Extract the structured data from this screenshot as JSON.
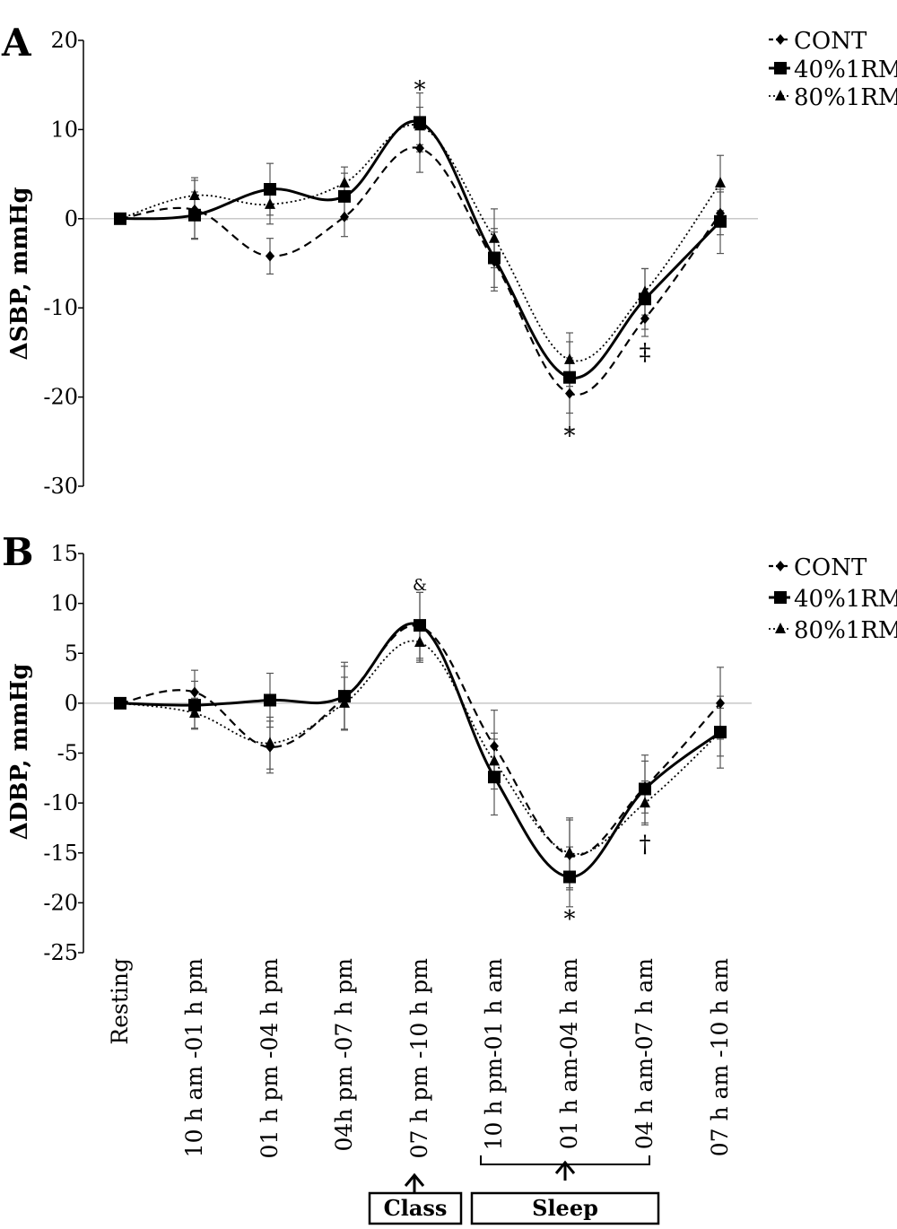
{
  "chart_data": [
    {
      "panel": "A",
      "type": "line",
      "ylabel": "ΔSBP, mmHg",
      "ylim": [
        -30,
        20
      ],
      "yticks": [
        "20",
        "10",
        "0",
        "-10",
        "-20",
        "-30"
      ],
      "legend": [
        "CONT",
        "40%1RM",
        "80%1RM"
      ],
      "series": [
        {
          "name": "CONT",
          "values": [
            0,
            1.0,
            -4.2,
            0.2,
            7.9,
            -4.8,
            -19.6,
            -11.2,
            0.6
          ],
          "errors": [
            0,
            3.3,
            2.0,
            2.2,
            2.7,
            3.3,
            4.0,
            2.0,
            2.4
          ]
        },
        {
          "name": "40%1RM",
          "values": [
            0,
            0.4,
            3.3,
            2.5,
            10.8,
            -4.4,
            -17.8,
            -9.0,
            -0.3
          ],
          "errors": [
            0,
            2.6,
            2.9,
            2.6,
            3.3,
            3.3,
            4.0,
            3.4,
            3.6
          ]
        },
        {
          "name": "80%1RM",
          "values": [
            0,
            2.6,
            1.6,
            4.0,
            10.4,
            -2.2,
            -15.8,
            -8.2,
            4.0
          ],
          "errors": [
            0,
            2.0,
            2.2,
            1.8,
            2.1,
            3.3,
            3.0,
            2.6,
            3.1
          ]
        }
      ],
      "annotations": [
        {
          "text": "*",
          "category_index": 4,
          "value": 14.6
        },
        {
          "text": "*",
          "category_index": 6,
          "value": -24.2
        },
        {
          "text": "‡",
          "category_index": 7,
          "value": -14.8
        }
      ]
    },
    {
      "panel": "B",
      "type": "line",
      "ylabel": "ΔDBP, mmHg",
      "ylim": [
        -25,
        15
      ],
      "yticks": [
        "15",
        "10",
        "5",
        "0",
        "-5",
        "-10",
        "-15",
        "-20",
        "-25"
      ],
      "legend": [
        "CONT",
        "40%1RM",
        "80%1RM"
      ],
      "series": [
        {
          "name": "CONT",
          "values": [
            0,
            1.1,
            -4.4,
            0.5,
            7.7,
            -4.3,
            -15.2,
            -8.4,
            0.0
          ],
          "errors": [
            0,
            2.2,
            2.6,
            3.2,
            3.4,
            3.6,
            3.5,
            2.6,
            3.6
          ]
        },
        {
          "name": "40%1RM",
          "values": [
            0,
            -0.2,
            0.3,
            0.7,
            7.8,
            -7.4,
            -17.4,
            -8.6,
            -2.9
          ],
          "errors": [
            0,
            2.4,
            2.7,
            3.4,
            3.3,
            3.8,
            3.0,
            3.4,
            3.6
          ]
        },
        {
          "name": "80%1RM",
          "values": [
            0,
            -1.0,
            -4.0,
            0.0,
            6.1,
            -5.8,
            -15.0,
            -10.0,
            -2.9
          ],
          "errors": [
            0,
            1.5,
            2.6,
            2.6,
            2.0,
            2.8,
            3.5,
            2.2,
            2.4
          ]
        }
      ],
      "annotations": [
        {
          "text": "&",
          "category_index": 4,
          "value": 12.2
        },
        {
          "text": "*",
          "category_index": 6,
          "value": -21.5
        },
        {
          "text": "†",
          "category_index": 7,
          "value": -14.0
        }
      ]
    }
  ],
  "categories": [
    "Resting",
    "10 h am -01 h pm",
    "01 h pm -04 h pm",
    "04h pm -07 h pm",
    "07 h pm -10 h pm",
    "10 h pm-01 h am",
    "01 h am-04 h am",
    "04 h am-07 h am",
    "07 h am -10 h am"
  ],
  "phase_labels": {
    "class": "Class",
    "sleep": "Sleep"
  },
  "colors": {
    "line": "#000000",
    "zero_line": "#c8c8c8",
    "axis": "#000000"
  }
}
